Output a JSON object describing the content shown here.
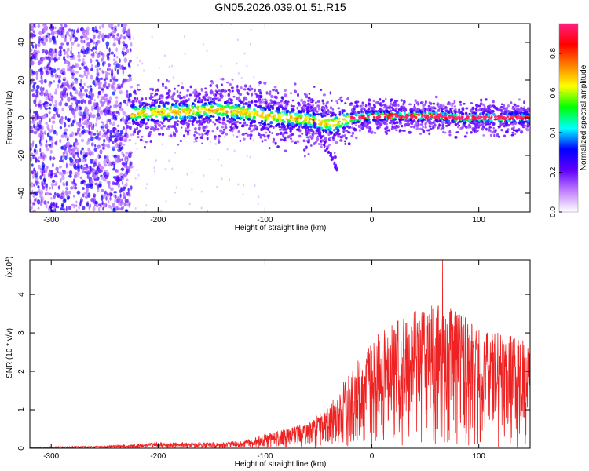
{
  "title": "GN05.2026.039.01.51.R15",
  "chart_data": [
    {
      "type": "heatmap",
      "name": "spectrogram",
      "xlabel": "Height of straight line (km)",
      "ylabel": "Frequency (Hz)",
      "xlim": [
        -320,
        148
      ],
      "ylim": [
        -50,
        50
      ],
      "xticks": [
        -300,
        -200,
        -100,
        0,
        100
      ],
      "yticks": [
        -40,
        -20,
        0,
        20,
        40
      ],
      "colorbar": {
        "label": "Normalized spectral amplitude",
        "range": [
          0,
          0.95
        ],
        "ticks": [
          0.0,
          0.2,
          0.4,
          0.6,
          0.8
        ],
        "colors": [
          "#ffffff",
          "#c080ff",
          "#6000ff",
          "#0000ff",
          "#00ffff",
          "#00ff00",
          "#ffff00",
          "#ff8000",
          "#ff0000",
          "#ff2080"
        ]
      },
      "ridge": {
        "x": [
          -225,
          -200,
          -180,
          -160,
          -140,
          -120,
          -100,
          -80,
          -60,
          -45,
          -35,
          -25,
          -15,
          0,
          20,
          40,
          60,
          80,
          100,
          120,
          148
        ],
        "y": [
          2,
          3,
          3,
          4,
          4,
          3,
          1,
          0,
          -1,
          -3,
          -3,
          -1,
          0,
          1,
          1,
          1,
          1,
          0,
          0,
          0,
          0
        ]
      },
      "features": {
        "noise_region_x": [
          -320,
          -225
        ],
        "tail_feature": {
          "x": [
            -55,
            -32
          ],
          "y": [
            -2,
            -28
          ]
        }
      }
    },
    {
      "type": "line",
      "name": "snr",
      "xlabel": "Height of straight line (km)",
      "ylabel": "SNR (10 * v/v)",
      "scale_label": "(x10",
      "scale_exp": "4",
      "scale_close": ")",
      "xlim": [
        -320,
        148
      ],
      "ylim": [
        0,
        4.9
      ],
      "xticks": [
        -300,
        -200,
        -100,
        0,
        100
      ],
      "yticks": [
        0,
        1,
        2,
        3,
        4
      ],
      "color": "#ee2222",
      "envelope": {
        "x": [
          -320,
          -250,
          -200,
          -150,
          -120,
          -100,
          -80,
          -60,
          -40,
          -20,
          0,
          20,
          40,
          60,
          80,
          100,
          120,
          148
        ],
        "y": [
          0.02,
          0.05,
          0.12,
          0.12,
          0.15,
          0.3,
          0.4,
          0.55,
          0.9,
          1.6,
          2.3,
          2.6,
          2.9,
          3.1,
          2.9,
          2.5,
          2.4,
          2.2
        ]
      },
      "peak": {
        "x": 66,
        "y": 4.9
      }
    }
  ]
}
